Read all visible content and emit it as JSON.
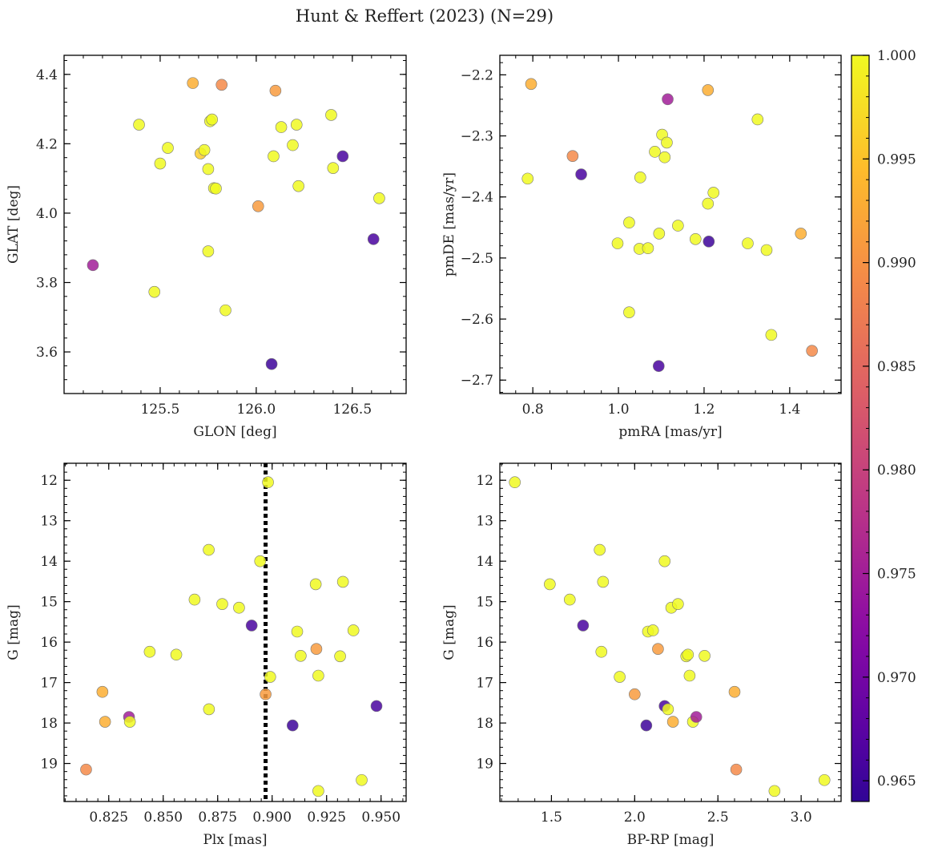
{
  "figure": {
    "title": "Hunt & Reffert (2023) (N=29)"
  },
  "colorbar": {
    "ticks": [
      0.965,
      0.97,
      0.975,
      0.98,
      0.985,
      0.99,
      0.995,
      1.0
    ],
    "tick_labels": [
      "0.965",
      "0.970",
      "0.975",
      "0.980",
      "0.985",
      "0.990",
      "0.995",
      "1.000"
    ],
    "range": [
      0.964,
      1.0
    ],
    "colormap": "plasma"
  },
  "chart_data": [
    {
      "type": "scatter",
      "xlabel": "GLON [deg]",
      "ylabel": "GLAT [deg]",
      "xlim": [
        125.0,
        126.78
      ],
      "ylim": [
        3.48,
        4.455
      ],
      "xticks": [
        125.5,
        126.0,
        126.5
      ],
      "xtick_labels": [
        "125.5",
        "126.0",
        "126.5"
      ],
      "yticks": [
        3.6,
        3.8,
        4.0,
        4.2,
        4.4
      ],
      "ytick_labels": [
        "3.6",
        "3.8",
        "4.0",
        "4.2",
        "4.4"
      ],
      "points": [
        {
          "x": 125.15,
          "y": 3.85,
          "c": 0.975
        },
        {
          "x": 125.39,
          "y": 4.255,
          "c": 1.0
        },
        {
          "x": 125.47,
          "y": 3.773,
          "c": 1.0
        },
        {
          "x": 125.5,
          "y": 4.143,
          "c": 1.0
        },
        {
          "x": 125.54,
          "y": 4.188,
          "c": 1.0
        },
        {
          "x": 125.67,
          "y": 4.375,
          "c": 0.993
        },
        {
          "x": 125.71,
          "y": 4.172,
          "c": 0.996
        },
        {
          "x": 125.73,
          "y": 4.182,
          "c": 1.0
        },
        {
          "x": 125.75,
          "y": 4.127,
          "c": 1.0
        },
        {
          "x": 125.75,
          "y": 3.89,
          "c": 1.0
        },
        {
          "x": 125.76,
          "y": 4.265,
          "c": 1.0
        },
        {
          "x": 125.77,
          "y": 4.27,
          "c": 1.0
        },
        {
          "x": 125.78,
          "y": 4.072,
          "c": 1.0
        },
        {
          "x": 125.79,
          "y": 4.071,
          "c": 1.0
        },
        {
          "x": 125.82,
          "y": 4.37,
          "c": 0.989
        },
        {
          "x": 125.84,
          "y": 3.72,
          "c": 1.0
        },
        {
          "x": 126.01,
          "y": 4.02,
          "c": 0.991
        },
        {
          "x": 126.08,
          "y": 3.565,
          "c": 0.965
        },
        {
          "x": 126.09,
          "y": 4.164,
          "c": 1.0
        },
        {
          "x": 126.1,
          "y": 4.353,
          "c": 0.991
        },
        {
          "x": 126.13,
          "y": 4.248,
          "c": 1.0
        },
        {
          "x": 126.19,
          "y": 4.196,
          "c": 1.0
        },
        {
          "x": 126.21,
          "y": 4.255,
          "c": 1.0
        },
        {
          "x": 126.22,
          "y": 4.078,
          "c": 1.0
        },
        {
          "x": 126.39,
          "y": 4.283,
          "c": 1.0
        },
        {
          "x": 126.4,
          "y": 4.13,
          "c": 1.0
        },
        {
          "x": 126.45,
          "y": 4.164,
          "c": 0.966
        },
        {
          "x": 126.61,
          "y": 3.925,
          "c": 0.966
        },
        {
          "x": 126.64,
          "y": 4.043,
          "c": 1.0
        }
      ]
    },
    {
      "type": "scatter",
      "xlabel": "pmRA [mas/yr]",
      "ylabel": "pmDE [mas/yr]",
      "xlim": [
        0.723,
        1.52
      ],
      "ylim": [
        -2.722,
        -2.168
      ],
      "xticks": [
        0.8,
        1.0,
        1.2,
        1.4
      ],
      "xtick_labels": [
        "0.8",
        "1.0",
        "1.2",
        "1.4"
      ],
      "yticks": [
        -2.2,
        -2.3,
        -2.4,
        -2.5,
        -2.6,
        -2.7
      ],
      "ytick_labels": [
        "−2.2",
        "−2.3",
        "−2.4",
        "−2.5",
        "−2.6",
        "−2.7"
      ],
      "points": [
        {
          "x": 0.796,
          "y": -2.215,
          "c": 0.993
        },
        {
          "x": 0.788,
          "y": -2.37,
          "c": 1.0
        },
        {
          "x": 0.893,
          "y": -2.333,
          "c": 0.989
        },
        {
          "x": 0.913,
          "y": -2.363,
          "c": 0.966
        },
        {
          "x": 0.998,
          "y": -2.476,
          "c": 1.0
        },
        {
          "x": 1.025,
          "y": -2.442,
          "c": 1.0
        },
        {
          "x": 1.025,
          "y": -2.589,
          "c": 1.0
        },
        {
          "x": 1.051,
          "y": -2.368,
          "c": 1.0
        },
        {
          "x": 1.049,
          "y": -2.485,
          "c": 1.0
        },
        {
          "x": 1.069,
          "y": -2.484,
          "c": 1.0
        },
        {
          "x": 1.085,
          "y": -2.326,
          "c": 1.0
        },
        {
          "x": 1.095,
          "y": -2.46,
          "c": 1.0
        },
        {
          "x": 1.094,
          "y": -2.677,
          "c": 0.966
        },
        {
          "x": 1.102,
          "y": -2.298,
          "c": 1.0
        },
        {
          "x": 1.108,
          "y": -2.335,
          "c": 1.0
        },
        {
          "x": 1.113,
          "y": -2.311,
          "c": 1.0
        },
        {
          "x": 1.115,
          "y": -2.24,
          "c": 0.975
        },
        {
          "x": 1.139,
          "y": -2.447,
          "c": 1.0
        },
        {
          "x": 1.18,
          "y": -2.469,
          "c": 1.0
        },
        {
          "x": 1.209,
          "y": -2.225,
          "c": 0.993
        },
        {
          "x": 1.209,
          "y": -2.411,
          "c": 1.0
        },
        {
          "x": 1.211,
          "y": -2.473,
          "c": 0.965
        },
        {
          "x": 1.222,
          "y": -2.393,
          "c": 1.0
        },
        {
          "x": 1.302,
          "y": -2.476,
          "c": 1.0
        },
        {
          "x": 1.325,
          "y": -2.273,
          "c": 1.0
        },
        {
          "x": 1.346,
          "y": -2.487,
          "c": 1.0
        },
        {
          "x": 1.357,
          "y": -2.626,
          "c": 1.0
        },
        {
          "x": 1.426,
          "y": -2.46,
          "c": 0.993
        },
        {
          "x": 1.452,
          "y": -2.652,
          "c": 0.989
        }
      ]
    },
    {
      "type": "scatter",
      "xlabel": "Plx [mas]",
      "ylabel": "G [mag]",
      "xlim": [
        0.8045,
        0.9615
      ],
      "ylim": [
        19.94,
        11.58
      ],
      "xticks": [
        0.825,
        0.85,
        0.875,
        0.9,
        0.925,
        0.95
      ],
      "xtick_labels": [
        "0.825",
        "0.850",
        "0.875",
        "0.900",
        "0.925",
        "0.950"
      ],
      "yticks": [
        12,
        13,
        14,
        15,
        16,
        17,
        18,
        19
      ],
      "ytick_labels": [
        "12",
        "13",
        "14",
        "15",
        "16",
        "17",
        "18",
        "19"
      ],
      "vline": {
        "x": 0.897,
        "style": "dotted"
      },
      "points": [
        {
          "x": 0.8146,
          "y": 19.15,
          "c": 0.989
        },
        {
          "x": 0.8221,
          "y": 17.23,
          "c": 0.993
        },
        {
          "x": 0.8233,
          "y": 17.97,
          "c": 0.993
        },
        {
          "x": 0.8343,
          "y": 17.85,
          "c": 0.975
        },
        {
          "x": 0.8347,
          "y": 17.97,
          "c": 1.0
        },
        {
          "x": 0.8438,
          "y": 16.24,
          "c": 1.0
        },
        {
          "x": 0.856,
          "y": 16.31,
          "c": 1.0
        },
        {
          "x": 0.8644,
          "y": 14.95,
          "c": 1.0
        },
        {
          "x": 0.8709,
          "y": 13.72,
          "c": 1.0
        },
        {
          "x": 0.871,
          "y": 17.66,
          "c": 1.0
        },
        {
          "x": 0.8771,
          "y": 15.06,
          "c": 1.0
        },
        {
          "x": 0.8848,
          "y": 15.15,
          "c": 1.0
        },
        {
          "x": 0.8906,
          "y": 15.59,
          "c": 0.966
        },
        {
          "x": 0.8945,
          "y": 14.0,
          "c": 1.0
        },
        {
          "x": 0.897,
          "y": 17.29,
          "c": 0.991
        },
        {
          "x": 0.8981,
          "y": 12.05,
          "c": 1.0
        },
        {
          "x": 0.8991,
          "y": 16.86,
          "c": 1.0
        },
        {
          "x": 0.9094,
          "y": 18.06,
          "c": 0.965
        },
        {
          "x": 0.9115,
          "y": 15.74,
          "c": 1.0
        },
        {
          "x": 0.9131,
          "y": 16.34,
          "c": 1.0
        },
        {
          "x": 0.92,
          "y": 14.57,
          "c": 1.0
        },
        {
          "x": 0.9203,
          "y": 16.17,
          "c": 0.991
        },
        {
          "x": 0.9212,
          "y": 16.83,
          "c": 1.0
        },
        {
          "x": 0.9212,
          "y": 19.68,
          "c": 1.0
        },
        {
          "x": 0.9312,
          "y": 16.35,
          "c": 1.0
        },
        {
          "x": 0.9325,
          "y": 14.51,
          "c": 1.0
        },
        {
          "x": 0.9373,
          "y": 15.71,
          "c": 1.0
        },
        {
          "x": 0.9411,
          "y": 19.41,
          "c": 1.0
        },
        {
          "x": 0.9479,
          "y": 17.58,
          "c": 0.966
        }
      ]
    },
    {
      "type": "scatter",
      "xlabel": "BP-RP [mag]",
      "ylabel": "G [mag]",
      "xlim": [
        1.19,
        3.24
      ],
      "ylim": [
        19.94,
        11.58
      ],
      "xticks": [
        1.5,
        2.0,
        2.5,
        3.0
      ],
      "xtick_labels": [
        "1.5",
        "2.0",
        "2.5",
        "3.0"
      ],
      "yticks": [
        12,
        13,
        14,
        15,
        16,
        17,
        18,
        19
      ],
      "ytick_labels": [
        "12",
        "13",
        "14",
        "15",
        "16",
        "17",
        "18",
        "19"
      ],
      "points": [
        {
          "x": 1.28,
          "y": 12.05,
          "c": 1.0
        },
        {
          "x": 1.49,
          "y": 14.57,
          "c": 1.0
        },
        {
          "x": 1.61,
          "y": 14.95,
          "c": 1.0
        },
        {
          "x": 1.69,
          "y": 15.59,
          "c": 0.966
        },
        {
          "x": 1.79,
          "y": 13.72,
          "c": 1.0
        },
        {
          "x": 1.81,
          "y": 14.51,
          "c": 1.0
        },
        {
          "x": 1.8,
          "y": 16.24,
          "c": 1.0
        },
        {
          "x": 1.91,
          "y": 16.86,
          "c": 1.0
        },
        {
          "x": 2.0,
          "y": 17.29,
          "c": 0.991
        },
        {
          "x": 2.07,
          "y": 18.06,
          "c": 0.965
        },
        {
          "x": 2.08,
          "y": 15.74,
          "c": 1.0
        },
        {
          "x": 2.11,
          "y": 15.71,
          "c": 1.0
        },
        {
          "x": 2.14,
          "y": 16.17,
          "c": 0.991
        },
        {
          "x": 2.18,
          "y": 14.0,
          "c": 1.0
        },
        {
          "x": 2.18,
          "y": 17.58,
          "c": 0.966
        },
        {
          "x": 2.2,
          "y": 17.66,
          "c": 1.0
        },
        {
          "x": 2.22,
          "y": 15.15,
          "c": 1.0
        },
        {
          "x": 2.23,
          "y": 17.97,
          "c": 0.993
        },
        {
          "x": 2.26,
          "y": 15.06,
          "c": 1.0
        },
        {
          "x": 2.31,
          "y": 16.35,
          "c": 1.0
        },
        {
          "x": 2.32,
          "y": 16.31,
          "c": 1.0
        },
        {
          "x": 2.33,
          "y": 16.83,
          "c": 1.0
        },
        {
          "x": 2.35,
          "y": 17.97,
          "c": 1.0
        },
        {
          "x": 2.37,
          "y": 17.85,
          "c": 0.975
        },
        {
          "x": 2.42,
          "y": 16.34,
          "c": 1.0
        },
        {
          "x": 2.6,
          "y": 17.23,
          "c": 0.993
        },
        {
          "x": 2.61,
          "y": 19.15,
          "c": 0.989
        },
        {
          "x": 2.84,
          "y": 19.68,
          "c": 1.0
        },
        {
          "x": 3.14,
          "y": 19.41,
          "c": 1.0
        }
      ]
    }
  ]
}
